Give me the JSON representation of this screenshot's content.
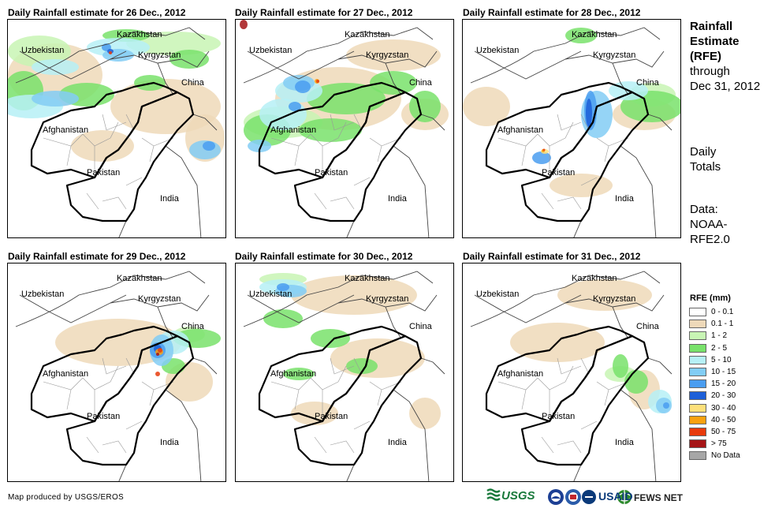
{
  "panels": [
    {
      "title": "Daily Rainfall estimate for 26 Dec., 2012",
      "rain": "d26"
    },
    {
      "title": "Daily Rainfall estimate for 27 Dec., 2012",
      "rain": "d27"
    },
    {
      "title": "Daily Rainfall estimate for 28 Dec., 2012",
      "rain": "d28"
    },
    {
      "title": "Daily Rainfall estimate for 29 Dec., 2012",
      "rain": "d29"
    },
    {
      "title": "Daily Rainfall estimate for 30 Dec., 2012",
      "rain": "d30"
    },
    {
      "title": "Daily Rainfall estimate for 31 Dec., 2012",
      "rain": "d31"
    }
  ],
  "map_labels": {
    "kazakhstan": "Kazakhstan",
    "uzbekistan": "Uzbekistan",
    "kyrgyzstan": "Kyrgyzstan",
    "china": "China",
    "afghanistan": "Afghanistan",
    "pakistan": "Pakistan",
    "india": "India"
  },
  "side": {
    "title_lines": [
      "Rainfall",
      "Estimate",
      "(RFE)"
    ],
    "through": "through",
    "date": "Dec 31, 2012",
    "daily": "Daily",
    "totals": "Totals",
    "data_label": "Data:",
    "source_1": "NOAA-",
    "source_2": "RFE2.0"
  },
  "legend": {
    "title": "RFE (mm)",
    "items": [
      {
        "label": "0 - 0.1",
        "color": "#ffffff"
      },
      {
        "label": "0.1 - 1",
        "color": "#eed9b9"
      },
      {
        "label": "1 - 2",
        "color": "#c8f5b4"
      },
      {
        "label": "2 - 5",
        "color": "#79e26b"
      },
      {
        "label": "5 - 10",
        "color": "#b6f0f6"
      },
      {
        "label": "10 - 15",
        "color": "#82cdf5"
      },
      {
        "label": "15 - 20",
        "color": "#4a9df0"
      },
      {
        "label": "20 - 30",
        "color": "#1d5fd8"
      },
      {
        "label": "30 - 40",
        "color": "#fde07a"
      },
      {
        "label": "40 - 50",
        "color": "#f9a10f"
      },
      {
        "label": "50 - 75",
        "color": "#e83b0c"
      },
      {
        "label": "> 75",
        "color": "#a51416"
      },
      {
        "label": "No Data",
        "color": "#a6a6a6"
      }
    ]
  },
  "credit": "Map produced by USGS/EROS",
  "logos": {
    "usgs": "USGS",
    "usaid": "USAID",
    "fewsnet": "FEWS NET"
  }
}
